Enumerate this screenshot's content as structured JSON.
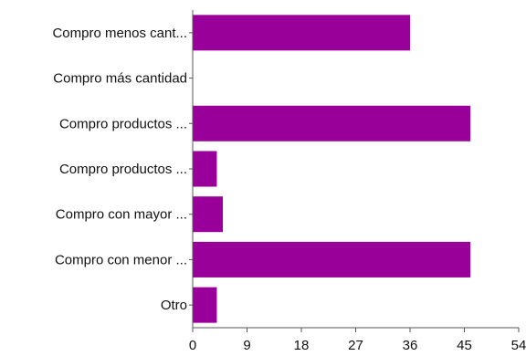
{
  "chart_data": {
    "type": "bar",
    "orientation": "horizontal",
    "title": "",
    "xlabel": "",
    "ylabel": "",
    "categories": [
      "Compro menos cant...",
      "Compro más cantidad",
      "Compro productos ...",
      "Compro productos ...",
      "Compro con mayor ...",
      "Compro con menor ...",
      "Otro"
    ],
    "values": [
      36,
      0,
      46,
      4,
      5,
      46,
      4
    ],
    "xlim": [
      0,
      54
    ],
    "xticks": [
      "0",
      "9",
      "18",
      "27",
      "36",
      "45",
      "54"
    ],
    "grid": false,
    "legend": "none",
    "bar_color": "#990099",
    "axis_color": "#555555"
  }
}
